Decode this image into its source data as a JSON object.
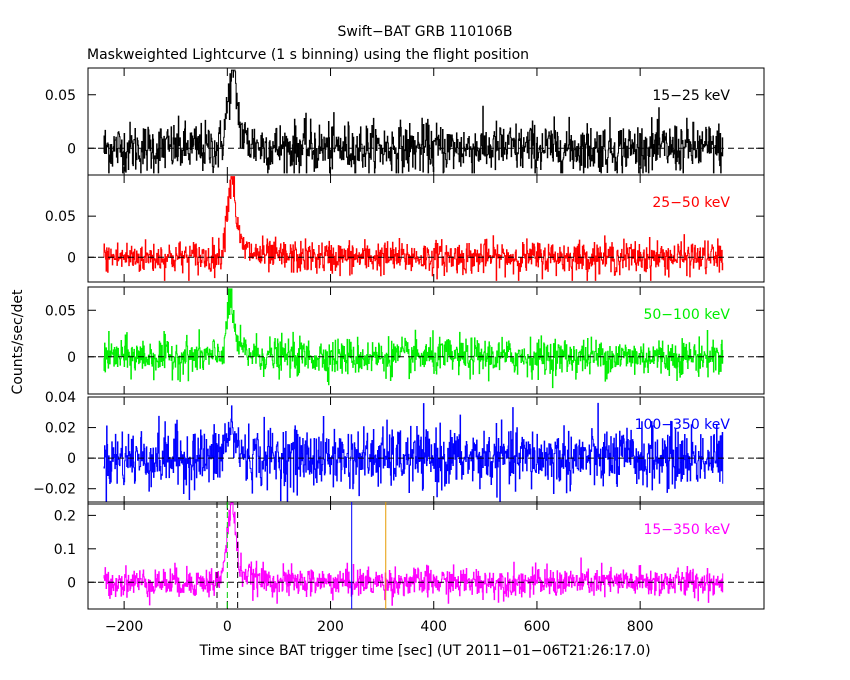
{
  "title": "Swift−BAT GRB 110106B",
  "subtitle": "Maskweighted Lightcurve (1 s binning) using the flight position",
  "xlabel": "Time since BAT trigger time [sec] (UT 2011−01−06T21:26:17.0)",
  "ylabel": "Counts/sec/det",
  "colors": {
    "axis": "#000000",
    "marker_blue": "#0000ff",
    "marker_orange": "#e69a00"
  },
  "chart_data": {
    "type": "line",
    "xlim": [
      -270,
      1040
    ],
    "x_ticks": [
      -200,
      0,
      200,
      400,
      600,
      800
    ],
    "x_tick_labels": [
      "−200",
      "0",
      "200",
      "400",
      "600",
      "800"
    ],
    "markers": {
      "dashed_x": [
        -20,
        20
      ],
      "dashed_green_x": [
        0
      ],
      "solid_blue_x": 241,
      "solid_orange_x": 307
    },
    "series": [
      {
        "name": "15−25 keV",
        "color": "#000000",
        "ylim": [
          -0.025,
          0.075
        ],
        "y_ticks": [
          0,
          0.05
        ],
        "y_tick_labels": [
          "0",
          "0.05"
        ],
        "noise": 0.012,
        "peak": 0.06,
        "peak_t": 8,
        "peak_w": 9
      },
      {
        "name": "25−50 keV",
        "color": "#ff0000",
        "ylim": [
          -0.03,
          0.1
        ],
        "y_ticks": [
          0,
          0.05
        ],
        "y_tick_labels": [
          "0",
          "0.05"
        ],
        "noise": 0.01,
        "peak": 0.085,
        "peak_t": 6,
        "peak_w": 8
      },
      {
        "name": "50−100 keV",
        "color": "#00ee00",
        "ylim": [
          -0.04,
          0.075
        ],
        "y_ticks": [
          0,
          0.05
        ],
        "y_tick_labels": [
          "0",
          "0.05"
        ],
        "noise": 0.01,
        "peak": 0.05,
        "peak_t": 4,
        "peak_w": 7
      },
      {
        "name": "100−350 keV",
        "color": "#0000ff",
        "ylim": [
          -0.03,
          0.04
        ],
        "y_ticks": [
          -0.02,
          0,
          0.02,
          0.04
        ],
        "y_tick_labels": [
          "−0.02",
          "0",
          "0.02",
          "0.04"
        ],
        "noise": 0.01,
        "peak": 0.015,
        "peak_t": 5,
        "peak_w": 10
      },
      {
        "name": "15−350 keV",
        "color": "#ff00ff",
        "ylim": [
          -0.08,
          0.24
        ],
        "y_ticks": [
          0,
          0.1,
          0.2
        ],
        "y_tick_labels": [
          "0",
          "0.1",
          "0.2"
        ],
        "noise": 0.022,
        "peak": 0.2,
        "peak_t": 6,
        "peak_w": 8
      }
    ]
  }
}
